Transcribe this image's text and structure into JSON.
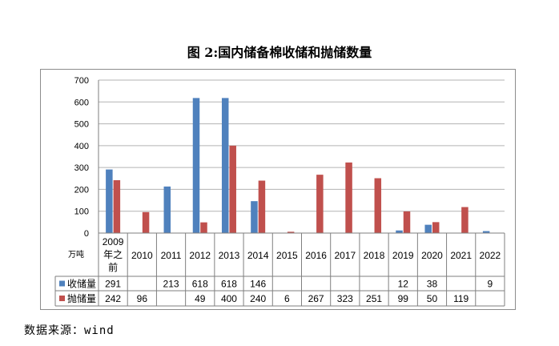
{
  "chart_data": {
    "type": "bar",
    "title": "图 2:国内储备棉收储和抛储数量",
    "ylabel": "万吨",
    "ylim": [
      0,
      700
    ],
    "yticks": [
      0,
      100,
      200,
      300,
      400,
      500,
      600,
      700
    ],
    "grid": true,
    "legend": "table-left",
    "categories": [
      "2009年之前",
      "2010",
      "2011",
      "2012",
      "2013",
      "2014",
      "2015",
      "2016",
      "2017",
      "2018",
      "2019",
      "2020",
      "2021",
      "2022"
    ],
    "series": [
      {
        "name": "收储量",
        "color": "#4f81bd",
        "values": [
          291,
          null,
          213,
          618,
          618,
          146,
          null,
          null,
          null,
          null,
          12,
          38,
          null,
          9
        ]
      },
      {
        "name": "抛储量",
        "color": "#c0504d",
        "values": [
          242,
          96,
          null,
          49,
          400,
          240,
          6,
          267,
          323,
          251,
          99,
          50,
          119,
          null
        ]
      }
    ]
  },
  "source": "数据来源：wind"
}
